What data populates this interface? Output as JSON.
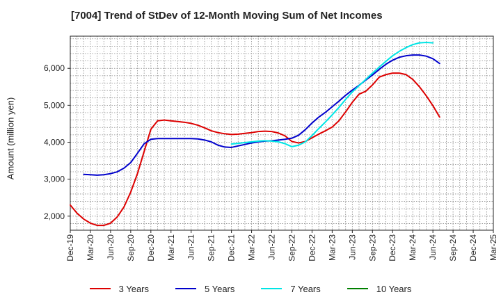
{
  "chart_data": {
    "type": "line",
    "title": "[7004]  Trend of StDev of 12-Month Moving Sum of Net Incomes",
    "xlabel": "",
    "ylabel": "Amount (million yen)",
    "x_tick_labels": [
      "Dec-19",
      "Mar-20",
      "Jun-20",
      "Sep-20",
      "Dec-20",
      "Mar-21",
      "Jun-21",
      "Sep-21",
      "Dec-21",
      "Mar-22",
      "Jun-22",
      "Sep-22",
      "Dec-22",
      "Mar-23",
      "Jun-23",
      "Sep-23",
      "Dec-23",
      "Mar-24",
      "Jun-24",
      "Sep-24",
      "Dec-24",
      "Mar-25"
    ],
    "y_ticks": [
      2000,
      3000,
      4000,
      5000,
      6000
    ],
    "y_tick_labels": [
      "2,000",
      "3,000",
      "4,000",
      "5,000",
      "6,000"
    ],
    "ylim": [
      1620,
      6870
    ],
    "grid": true,
    "legend_position": "bottom",
    "series": [
      {
        "name": "3 Years",
        "color": "#dd0000",
        "values": [
          2300,
          2080,
          1920,
          1810,
          1750,
          1750,
          1810,
          1980,
          2250,
          2650,
          3150,
          3750,
          4350,
          4580,
          4600,
          4580,
          4560,
          4540,
          4510,
          4460,
          4390,
          4310,
          4260,
          4230,
          4210,
          4220,
          4240,
          4260,
          4290,
          4300,
          4290,
          4250,
          4170,
          4020,
          3980,
          4020,
          4120,
          4220,
          4310,
          4410,
          4580,
          4820,
          5080,
          5300,
          5380,
          5550,
          5760,
          5830,
          5870,
          5870,
          5830,
          5700,
          5500,
          5260,
          4990,
          4680
        ]
      },
      {
        "name": "5 Years",
        "color": "#0000cc",
        "values": [
          null,
          null,
          3130,
          3120,
          3110,
          3120,
          3150,
          3200,
          3300,
          3450,
          3700,
          3960,
          4080,
          4100,
          4100,
          4100,
          4100,
          4100,
          4100,
          4090,
          4060,
          4010,
          3920,
          3870,
          3860,
          3900,
          3940,
          3980,
          4010,
          4030,
          4040,
          4060,
          4080,
          4110,
          4190,
          4340,
          4520,
          4680,
          4810,
          4960,
          5110,
          5270,
          5410,
          5540,
          5680,
          5820,
          5970,
          6110,
          6220,
          6300,
          6340,
          6360,
          6360,
          6330,
          6260,
          6130
        ]
      },
      {
        "name": "7 Years",
        "color": "#00e5e5",
        "values": [
          null,
          null,
          null,
          null,
          null,
          null,
          null,
          null,
          null,
          null,
          null,
          null,
          null,
          null,
          null,
          null,
          null,
          null,
          null,
          null,
          null,
          null,
          null,
          null,
          3950,
          3970,
          3990,
          4010,
          4030,
          4040,
          4030,
          4010,
          3960,
          3880,
          3920,
          4010,
          4180,
          4370,
          4550,
          4740,
          4940,
          5160,
          5360,
          5530,
          5700,
          5870,
          6030,
          6190,
          6340,
          6460,
          6560,
          6640,
          6690,
          6700,
          6690
        ]
      },
      {
        "name": "10 Years",
        "color": "#008000",
        "values": []
      }
    ]
  }
}
